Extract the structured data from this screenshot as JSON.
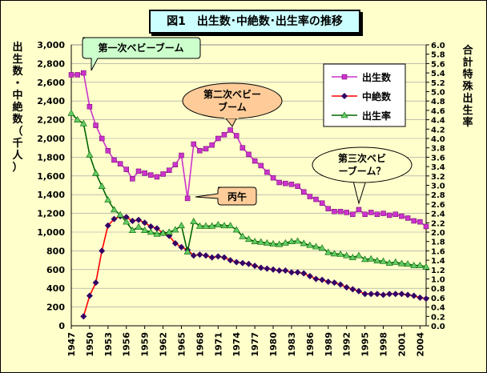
{
  "chart_data": {
    "type": "line",
    "title": "図1　出生数･中絶数･出生率の推移",
    "ylabel_left": "出生数・中絶数（千人）",
    "ylabel_right": "合計特殊出生率",
    "ylim_left": [
      0,
      3000
    ],
    "ylim_right": [
      0.0,
      6.0
    ],
    "xlim": [
      1947,
      2005
    ],
    "left_ticks": [
      "3,000",
      "2,800",
      "2,600",
      "2,400",
      "2,200",
      "2,000",
      "1,800",
      "1,600",
      "1,400",
      "1,200",
      "1,000",
      "800",
      "600",
      "400",
      "200",
      "0"
    ],
    "right_ticks": [
      "6.0",
      "5.8",
      "5.6",
      "5.4",
      "5.2",
      "5.0",
      "4.8",
      "4.6",
      "4.4",
      "4.2",
      "4.0",
      "3.8",
      "3.6",
      "3.4",
      "3.2",
      "3.0",
      "2.8",
      "2.6",
      "2.4",
      "2.2",
      "2.0",
      "1.8",
      "1.6",
      "1.4",
      "1.2",
      "1.0",
      "0.8",
      "0.6",
      "0.4",
      "0.2",
      "0.0"
    ],
    "x_ticks": [
      "1947",
      "1950",
      "1953",
      "1956",
      "1959",
      "1962",
      "1965",
      "1968",
      "1971",
      "1974",
      "1977",
      "1980",
      "1983",
      "1986",
      "1989",
      "1992",
      "1995",
      "1998",
      "2001",
      "2004"
    ],
    "legend_position": "top-right",
    "series": [
      {
        "name": "出生数",
        "axis": "left",
        "color": "#cc33cc",
        "marker": "square",
        "x": [
          1947,
          1948,
          1949,
          1950,
          1951,
          1952,
          1953,
          1954,
          1955,
          1956,
          1957,
          1958,
          1959,
          1960,
          1961,
          1962,
          1963,
          1964,
          1965,
          1966,
          1967,
          1968,
          1969,
          1970,
          1971,
          1972,
          1973,
          1974,
          1975,
          1976,
          1977,
          1978,
          1979,
          1980,
          1981,
          1982,
          1983,
          1984,
          1985,
          1986,
          1987,
          1988,
          1989,
          1990,
          1991,
          1992,
          1993,
          1994,
          1995,
          1996,
          1997,
          1998,
          1999,
          2000,
          2001,
          2002,
          2003,
          2004,
          2005
        ],
        "values": [
          2680,
          2680,
          2700,
          2340,
          2140,
          2000,
          1870,
          1770,
          1730,
          1670,
          1570,
          1650,
          1630,
          1610,
          1590,
          1620,
          1660,
          1720,
          1820,
          1360,
          1940,
          1870,
          1890,
          1930,
          2000,
          2040,
          2090,
          2030,
          1900,
          1830,
          1760,
          1710,
          1640,
          1580,
          1530,
          1520,
          1510,
          1490,
          1430,
          1380,
          1350,
          1310,
          1250,
          1220,
          1220,
          1210,
          1190,
          1240,
          1190,
          1210,
          1190,
          1200,
          1180,
          1190,
          1170,
          1150,
          1120,
          1110,
          1060
        ]
      },
      {
        "name": "中絶数",
        "axis": "left",
        "color": "#330066",
        "marker": "diamond",
        "x": [
          1949,
          1950,
          1951,
          1952,
          1953,
          1954,
          1955,
          1956,
          1957,
          1958,
          1959,
          1960,
          1961,
          1962,
          1963,
          1964,
          1965,
          1966,
          1967,
          1968,
          1969,
          1970,
          1971,
          1972,
          1973,
          1974,
          1975,
          1976,
          1977,
          1978,
          1979,
          1980,
          1981,
          1982,
          1983,
          1984,
          1985,
          1986,
          1987,
          1988,
          1989,
          1990,
          1991,
          1992,
          1993,
          1994,
          1995,
          1996,
          1997,
          1998,
          1999,
          2000,
          2001,
          2002,
          2003,
          2004,
          2005
        ],
        "values": [
          100,
          320,
          460,
          800,
          1070,
          1140,
          1170,
          1160,
          1120,
          1130,
          1100,
          1060,
          1040,
          990,
          960,
          880,
          840,
          810,
          750,
          760,
          750,
          730,
          740,
          730,
          700,
          680,
          670,
          660,
          640,
          620,
          610,
          600,
          590,
          590,
          570,
          570,
          560,
          530,
          500,
          490,
          470,
          460,
          440,
          410,
          390,
          370,
          340,
          340,
          340,
          330,
          340,
          340,
          340,
          330,
          320,
          300,
          290
        ]
      },
      {
        "name": "出生率",
        "axis": "right",
        "color": "#006600",
        "marker": "triangle",
        "x": [
          1947,
          1948,
          1949,
          1950,
          1951,
          1952,
          1953,
          1954,
          1955,
          1956,
          1957,
          1958,
          1959,
          1960,
          1961,
          1962,
          1963,
          1964,
          1965,
          1966,
          1967,
          1968,
          1969,
          1970,
          1971,
          1972,
          1973,
          1974,
          1975,
          1976,
          1977,
          1978,
          1979,
          1980,
          1981,
          1982,
          1983,
          1984,
          1985,
          1986,
          1987,
          1988,
          1989,
          1990,
          1991,
          1992,
          1993,
          1994,
          1995,
          1996,
          1997,
          1998,
          1999,
          2000,
          2001,
          2002,
          2003,
          2004,
          2005
        ],
        "values": [
          4.54,
          4.4,
          4.32,
          3.65,
          3.26,
          2.98,
          2.69,
          2.48,
          2.37,
          2.22,
          2.04,
          2.11,
          2.04,
          2.0,
          1.96,
          1.98,
          2.0,
          2.05,
          2.14,
          1.58,
          2.23,
          2.13,
          2.13,
          2.13,
          2.16,
          2.14,
          2.14,
          2.05,
          1.91,
          1.85,
          1.8,
          1.79,
          1.77,
          1.75,
          1.74,
          1.77,
          1.8,
          1.81,
          1.76,
          1.72,
          1.69,
          1.66,
          1.57,
          1.54,
          1.53,
          1.5,
          1.46,
          1.5,
          1.42,
          1.43,
          1.39,
          1.38,
          1.34,
          1.36,
          1.33,
          1.32,
          1.29,
          1.29,
          1.26
        ]
      }
    ],
    "annotations": [
      {
        "id": "boom1",
        "text": "第一次ベビーブーム"
      },
      {
        "id": "boom2",
        "text": "第二次ベビーブーム"
      },
      {
        "id": "hinoe",
        "text": "丙午"
      },
      {
        "id": "boom3",
        "text": "第三次ベビーブーム？"
      }
    ]
  }
}
